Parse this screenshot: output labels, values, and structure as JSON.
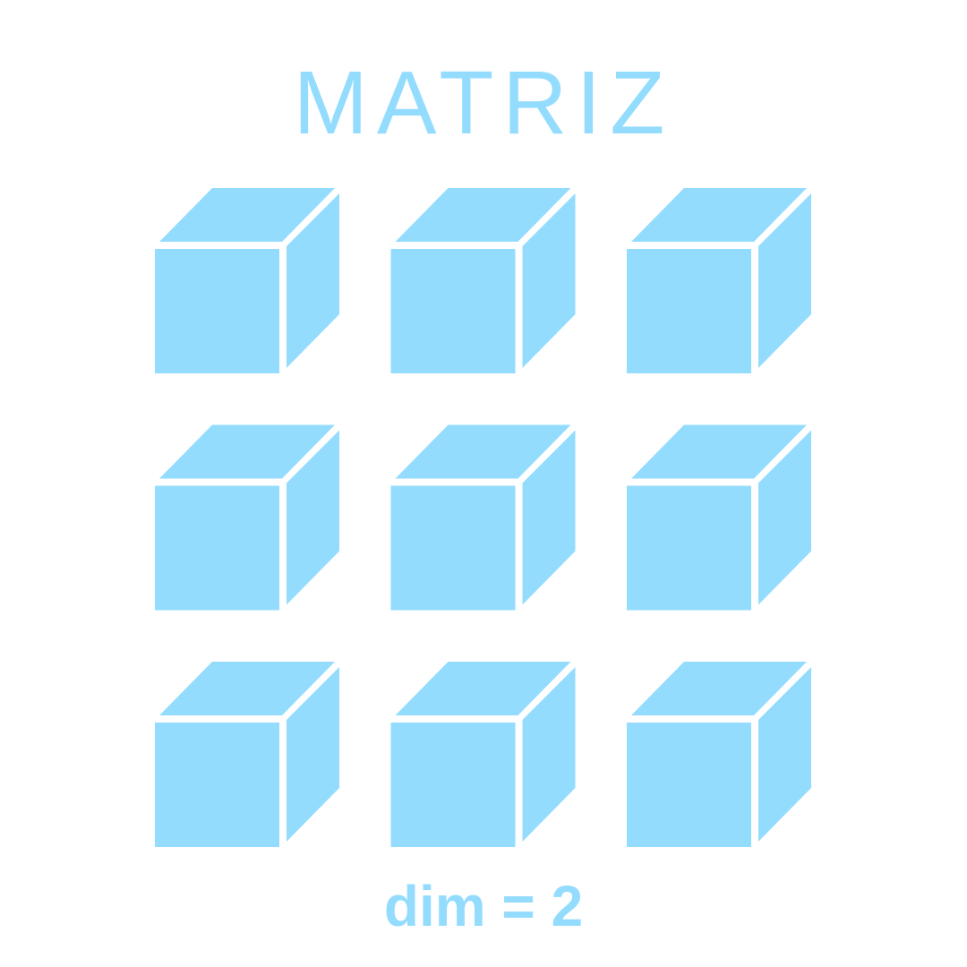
{
  "title": "MATRIZ",
  "caption": "dim = 2",
  "grid": {
    "rows": 3,
    "cols": 3,
    "cube_icon": "cube-icon"
  },
  "colors": {
    "cube_fill": "#94dcfe",
    "background": "#ffffff",
    "text": "#94dcfe"
  }
}
